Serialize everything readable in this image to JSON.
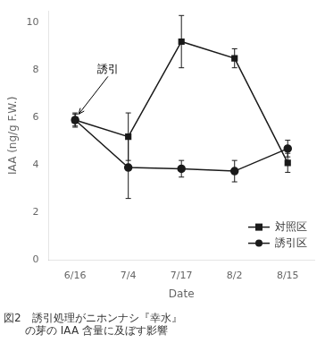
{
  "chart_data": {
    "type": "line",
    "categories": [
      "6/16",
      "7/4",
      "7/17",
      "8/2",
      "8/15"
    ],
    "series": [
      {
        "name": "対照区",
        "color": "#1a1a1a",
        "marker": "square",
        "line_style": "solid",
        "values": [
          5.9,
          5.2,
          9.2,
          8.5,
          4.1
        ],
        "errors": [
          0.3,
          1.0,
          1.1,
          0.4,
          0.4
        ]
      },
      {
        "name": "誘引区",
        "color": "#1a1a1a",
        "marker": "circle",
        "line_style": "solid",
        "values": [
          5.9,
          3.9,
          3.85,
          3.75,
          4.7
        ],
        "errors": [
          0.25,
          1.3,
          0.35,
          0.45,
          0.35
        ]
      }
    ],
    "xlabel": "Date",
    "ylabel": "IAA (ng/g F.W.)",
    "ylim": [
      0,
      10.5
    ],
    "yticks": [
      0,
      2,
      4,
      6,
      8,
      10
    ],
    "grid": false,
    "legend": "lower right",
    "annotations": [
      {
        "text": "誘引",
        "x": "6/16",
        "y": 6.0
      }
    ],
    "caption": [
      "図2　誘引処理がニホンナシ『幸水』",
      "　　の芽の IAA 含量に及ぼす影響"
    ]
  }
}
